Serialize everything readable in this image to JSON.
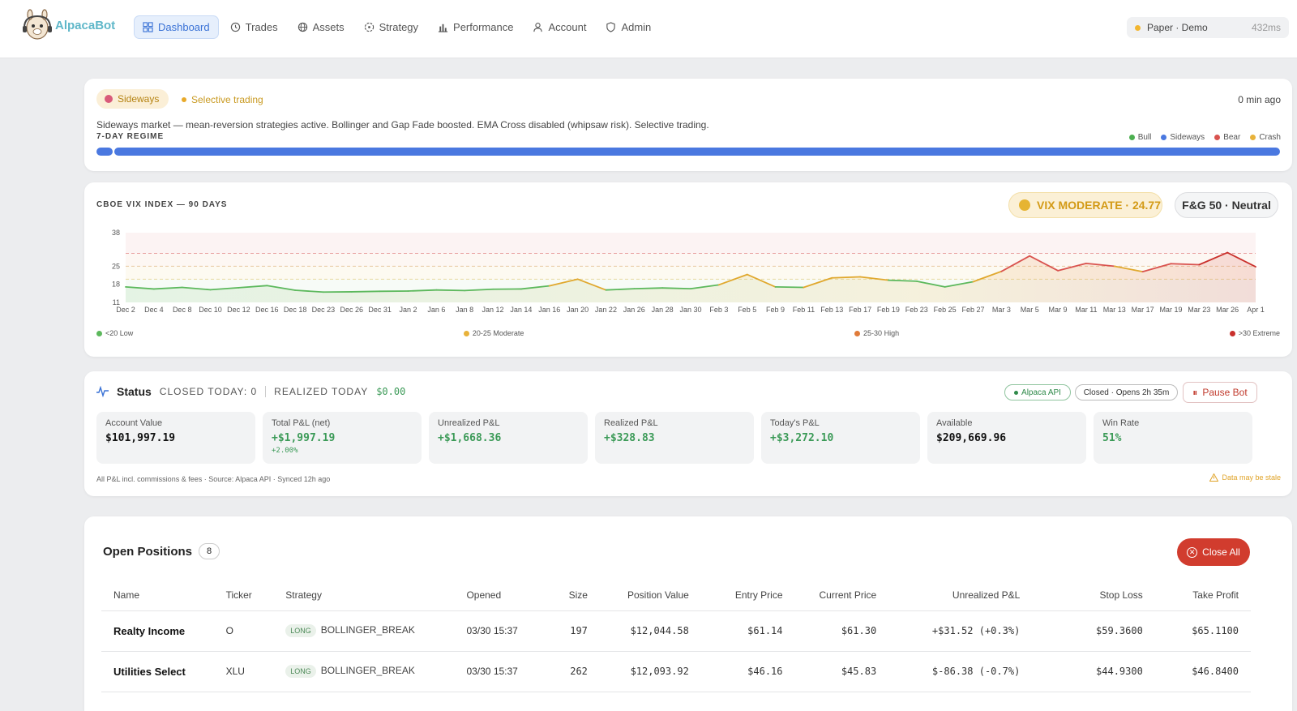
{
  "nav": {
    "brand": "AlpacaBot",
    "items": [
      {
        "label": "Dashboard",
        "icon": "grid-icon"
      },
      {
        "label": "Trades",
        "icon": "history-icon"
      },
      {
        "label": "Assets",
        "icon": "globe-icon"
      },
      {
        "label": "Strategy",
        "icon": "target-icon"
      },
      {
        "label": "Performance",
        "icon": "bar-chart-icon"
      },
      {
        "label": "Account",
        "icon": "user-icon"
      },
      {
        "label": "Admin",
        "icon": "shield-icon"
      }
    ],
    "mode": "Paper · Demo",
    "latency": "432ms"
  },
  "regime": {
    "badge": "Sideways",
    "selective": "Selective trading",
    "updated": "0 min ago",
    "description": "Sideways market — mean-reversion strategies active. Bollinger and Gap Fade boosted. EMA Cross disabled (whipsaw risk). Selective trading.",
    "label": "7-DAY REGIME",
    "legend": [
      {
        "label": "Bull",
        "color": "#4caf50"
      },
      {
        "label": "Sideways",
        "color": "#4a78e0"
      },
      {
        "label": "Bear",
        "color": "#d9534f"
      },
      {
        "label": "Crash",
        "color": "#e8b23a"
      }
    ]
  },
  "vix": {
    "title": "CBOE VIX INDEX — 90 DAYS",
    "badge": "VIX MODERATE · 24.77",
    "fg": "F&G 50 · Neutral",
    "legend": [
      "<20 Low",
      "20-25 Moderate",
      "25-30 High",
      ">30 Extreme"
    ]
  },
  "chart_data": {
    "type": "line",
    "ylim": [
      11,
      38
    ],
    "yticks": [
      11,
      18,
      25,
      38
    ],
    "x": [
      "Dec 2",
      "Dec 4",
      "Dec 8",
      "Dec 10",
      "Dec 12",
      "Dec 16",
      "Dec 18",
      "Dec 23",
      "Dec 26",
      "Dec 31",
      "Jan 2",
      "Jan 6",
      "Jan 8",
      "Jan 12",
      "Jan 14",
      "Jan 16",
      "Jan 20",
      "Jan 22",
      "Jan 26",
      "Jan 28",
      "Jan 30",
      "Feb 3",
      "Feb 5",
      "Feb 9",
      "Feb 11",
      "Feb 13",
      "Feb 17",
      "Feb 19",
      "Feb 23",
      "Feb 25",
      "Feb 27",
      "Mar 3",
      "Mar 5",
      "Mar 9",
      "Mar 11",
      "Mar 13",
      "Mar 17",
      "Mar 19",
      "Mar 23",
      "Mar 26",
      "Apr 1"
    ],
    "values": [
      17.0,
      16.2,
      16.8,
      15.9,
      16.7,
      17.5,
      15.7,
      15.0,
      15.1,
      15.3,
      15.4,
      15.8,
      15.6,
      16.1,
      16.2,
      17.4,
      20.0,
      15.8,
      16.3,
      16.6,
      16.3,
      17.8,
      21.8,
      17.0,
      16.8,
      20.5,
      20.9,
      19.6,
      19.2,
      17.0,
      19.0,
      23.0,
      29.0,
      23.3,
      26.1,
      25.0,
      22.9,
      26.0,
      25.6,
      30.3,
      24.8
    ],
    "series_color_rule": "<20 green, 20-25 yellow, 25-30 orange, >30 red"
  },
  "status": {
    "title": "Status",
    "closed_today": "CLOSED TODAY: 0",
    "realized_label": "REALIZED TODAY",
    "realized_value": "$0.00",
    "api": "Alpaca API",
    "market": "Closed · Opens 2h 35m",
    "pause": "Pause Bot",
    "metrics": [
      {
        "label": "Account Value",
        "value": "$101,997.19",
        "sub": ""
      },
      {
        "label": "Total P&L (net)",
        "value": "+$1,997.19",
        "sub": "+2.00%"
      },
      {
        "label": "Unrealized P&L",
        "value": "+$1,668.36",
        "sub": ""
      },
      {
        "label": "Realized P&L",
        "value": "+$328.83",
        "sub": ""
      },
      {
        "label": "Today's P&L",
        "value": "+$3,272.10",
        "sub": ""
      },
      {
        "label": "Available",
        "value": "$209,669.96",
        "sub": ""
      },
      {
        "label": "Win Rate",
        "value": "51%",
        "sub": ""
      }
    ],
    "footer": "All P&L incl. commissions & fees · Source: Alpaca API · Synced 12h ago",
    "stale": "Data may be stale"
  },
  "positions": {
    "title": "Open Positions",
    "count": "8",
    "close_all": "Close All",
    "columns": [
      "Name",
      "Ticker",
      "Strategy",
      "Opened",
      "Size",
      "Position Value",
      "Entry Price",
      "Current Price",
      "Unrealized P&L",
      "Stop Loss",
      "Take Profit"
    ],
    "rows": [
      {
        "name": "Realty Income",
        "ticker": "O",
        "side": "LONG",
        "strategy": "BOLLINGER_BREAK",
        "opened": "03/30 15:37",
        "size": "197",
        "value": "$12,044.58",
        "entry": "$61.14",
        "current": "$61.30",
        "pnl": "+$31.52 (+0.3%)",
        "stop": "$59.3600",
        "take": "$65.1100"
      },
      {
        "name": "Utilities Select",
        "ticker": "XLU",
        "side": "LONG",
        "strategy": "BOLLINGER_BREAK",
        "opened": "03/30 15:37",
        "size": "262",
        "value": "$12,093.92",
        "entry": "$46.16",
        "current": "$45.83",
        "pnl": "$-86.38 (-0.7%)",
        "stop": "$44.9300",
        "take": "$46.8400"
      }
    ]
  }
}
